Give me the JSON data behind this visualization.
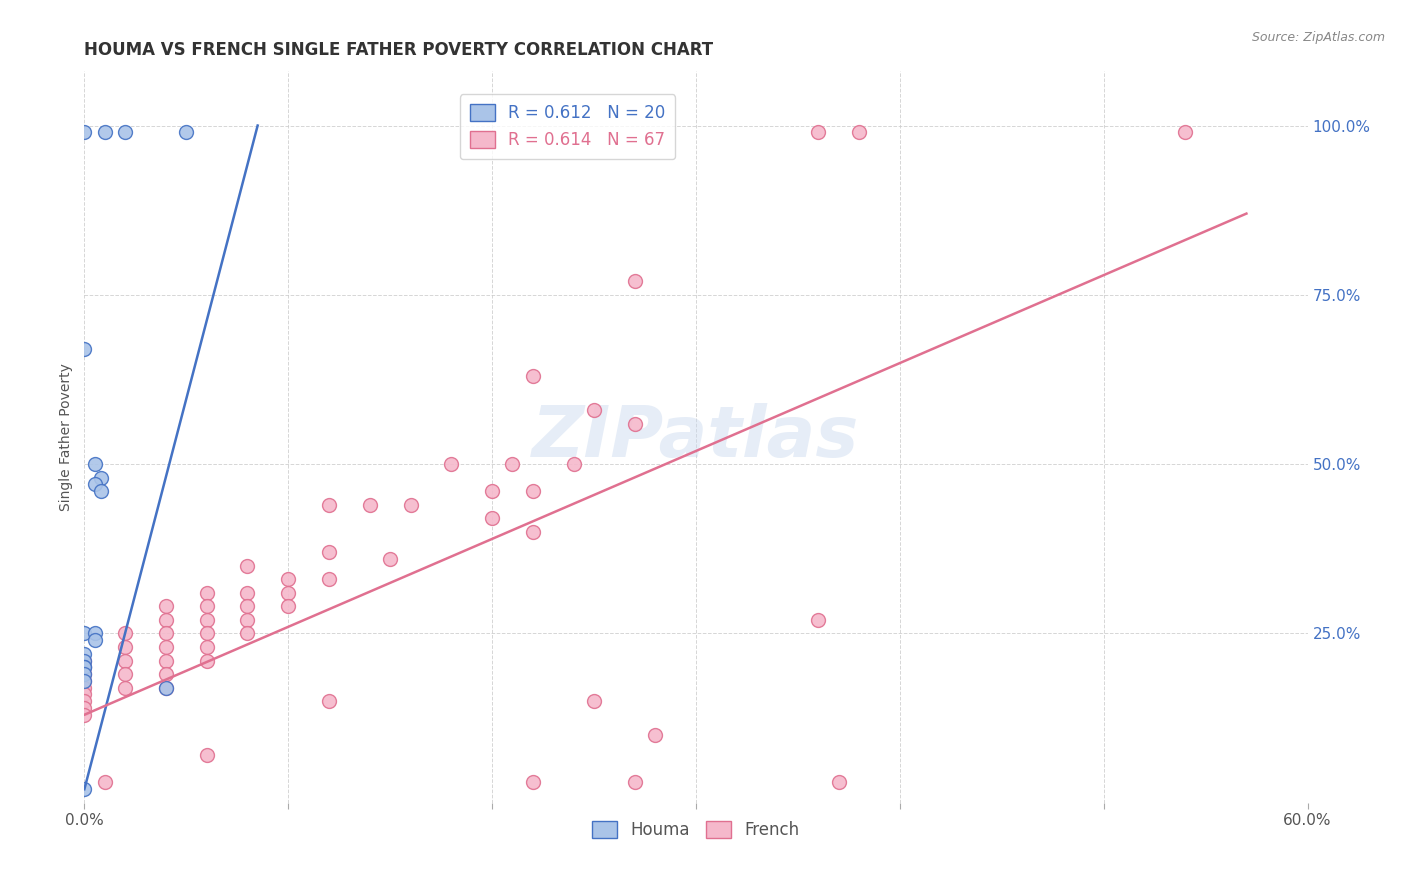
{
  "title": "HOUMA VS FRENCH SINGLE FATHER POVERTY CORRELATION CHART",
  "source": "Source: ZipAtlas.com",
  "ylabel_left": "Single Father Poverty",
  "xlim": [
    0.0,
    0.6
  ],
  "ylim": [
    0.0,
    1.08
  ],
  "houma_color": "#aac4e8",
  "french_color": "#f5b8cb",
  "houma_line_color": "#4472c4",
  "french_line_color": "#e07090",
  "watermark": "ZIPatlas",
  "houma_scatter": [
    [
      0.0,
      0.99
    ],
    [
      0.01,
      0.99
    ],
    [
      0.02,
      0.99
    ],
    [
      0.05,
      0.99
    ],
    [
      0.0,
      0.67
    ],
    [
      0.005,
      0.5
    ],
    [
      0.008,
      0.48
    ],
    [
      0.005,
      0.47
    ],
    [
      0.008,
      0.46
    ],
    [
      0.0,
      0.25
    ],
    [
      0.005,
      0.25
    ],
    [
      0.0,
      0.22
    ],
    [
      0.005,
      0.24
    ],
    [
      0.0,
      0.21
    ],
    [
      0.0,
      0.2
    ],
    [
      0.0,
      0.2
    ],
    [
      0.0,
      0.19
    ],
    [
      0.0,
      0.18
    ],
    [
      0.04,
      0.17
    ],
    [
      0.0,
      0.02
    ]
  ],
  "french_scatter": [
    [
      0.36,
      0.99
    ],
    [
      0.38,
      0.99
    ],
    [
      0.54,
      0.99
    ],
    [
      0.27,
      0.77
    ],
    [
      0.22,
      0.63
    ],
    [
      0.25,
      0.58
    ],
    [
      0.27,
      0.56
    ],
    [
      0.18,
      0.5
    ],
    [
      0.21,
      0.5
    ],
    [
      0.24,
      0.5
    ],
    [
      0.2,
      0.46
    ],
    [
      0.22,
      0.46
    ],
    [
      0.12,
      0.44
    ],
    [
      0.14,
      0.44
    ],
    [
      0.16,
      0.44
    ],
    [
      0.2,
      0.42
    ],
    [
      0.22,
      0.4
    ],
    [
      0.12,
      0.37
    ],
    [
      0.15,
      0.36
    ],
    [
      0.08,
      0.35
    ],
    [
      0.1,
      0.33
    ],
    [
      0.12,
      0.33
    ],
    [
      0.06,
      0.31
    ],
    [
      0.08,
      0.31
    ],
    [
      0.1,
      0.31
    ],
    [
      0.04,
      0.29
    ],
    [
      0.06,
      0.29
    ],
    [
      0.08,
      0.29
    ],
    [
      0.1,
      0.29
    ],
    [
      0.04,
      0.27
    ],
    [
      0.06,
      0.27
    ],
    [
      0.08,
      0.27
    ],
    [
      0.36,
      0.27
    ],
    [
      0.02,
      0.25
    ],
    [
      0.04,
      0.25
    ],
    [
      0.06,
      0.25
    ],
    [
      0.08,
      0.25
    ],
    [
      0.02,
      0.23
    ],
    [
      0.04,
      0.23
    ],
    [
      0.06,
      0.23
    ],
    [
      0.02,
      0.21
    ],
    [
      0.04,
      0.21
    ],
    [
      0.06,
      0.21
    ],
    [
      0.02,
      0.19
    ],
    [
      0.04,
      0.19
    ],
    [
      0.02,
      0.17
    ],
    [
      0.04,
      0.17
    ],
    [
      0.0,
      0.21
    ],
    [
      0.0,
      0.2
    ],
    [
      0.0,
      0.19
    ],
    [
      0.0,
      0.18
    ],
    [
      0.0,
      0.17
    ],
    [
      0.0,
      0.16
    ],
    [
      0.0,
      0.15
    ],
    [
      0.0,
      0.14
    ],
    [
      0.0,
      0.13
    ],
    [
      0.12,
      0.15
    ],
    [
      0.25,
      0.15
    ],
    [
      0.28,
      0.1
    ],
    [
      0.06,
      0.07
    ],
    [
      0.01,
      0.03
    ],
    [
      0.22,
      0.03
    ],
    [
      0.27,
      0.03
    ],
    [
      0.37,
      0.03
    ]
  ],
  "houma_line_x": [
    0.0,
    0.085
  ],
  "houma_line_y": [
    0.02,
    1.0
  ],
  "french_line_x": [
    0.0,
    0.57
  ],
  "french_line_y": [
    0.13,
    0.87
  ]
}
